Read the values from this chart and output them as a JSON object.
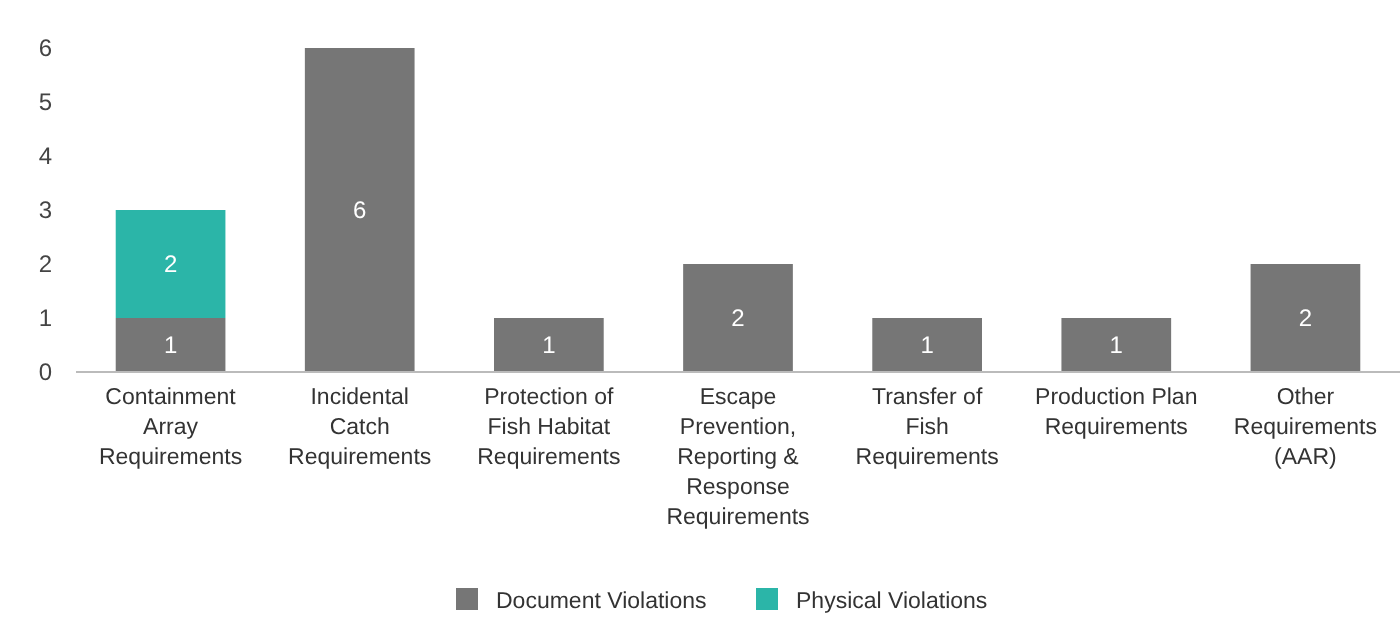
{
  "chart_data": {
    "type": "bar",
    "stacked": true,
    "categories": [
      "Containment Array Requirements",
      "Incidental Catch Requirements",
      "Protection of Fish Habitat Requirements",
      "Escape Prevention, Reporting & Response Requirements",
      "Transfer of Fish Requirements",
      "Production Plan Requirements",
      "Other Requirements (AAR)"
    ],
    "series": [
      {
        "name": "Document Violations",
        "color": "#767676",
        "values": [
          1,
          6,
          1,
          2,
          1,
          1,
          2
        ]
      },
      {
        "name": "Physical Violations",
        "color": "#2bb5a8",
        "values": [
          2,
          null,
          null,
          null,
          null,
          null,
          null
        ]
      }
    ],
    "ylim": [
      0,
      6
    ],
    "yticks": [
      0,
      1,
      2,
      3,
      4,
      5,
      6
    ],
    "data_labels": true,
    "legend": "bottom",
    "grid": false
  }
}
